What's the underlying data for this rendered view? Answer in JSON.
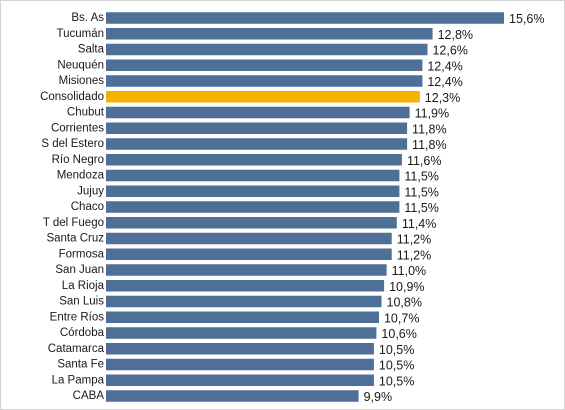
{
  "chart_data": {
    "type": "bar",
    "orientation": "horizontal",
    "categories": [
      "Bs. As",
      "Tucumán",
      "Salta",
      "Neuquén",
      "Misiones",
      "Consolidado",
      "Chubut",
      "Corrientes",
      "S del Estero",
      "Río Negro",
      "Mendoza",
      "Jujuy",
      "Chaco",
      "T del Fuego",
      "Santa Cruz",
      "Formosa",
      "San Juan",
      "La Rioja",
      "San Luis",
      "Entre Ríos",
      "Córdoba",
      "Catamarca",
      "Santa Fe",
      "La Pampa",
      "CABA"
    ],
    "values": [
      15.6,
      12.8,
      12.6,
      12.4,
      12.4,
      12.3,
      11.9,
      11.8,
      11.8,
      11.6,
      11.5,
      11.5,
      11.5,
      11.4,
      11.2,
      11.2,
      11.0,
      10.9,
      10.8,
      10.7,
      10.6,
      10.5,
      10.5,
      10.5,
      9.9
    ],
    "value_labels": [
      "15,6%",
      "12,8%",
      "12,6%",
      "12,4%",
      "12,4%",
      "12,3%",
      "11,9%",
      "11,8%",
      "11,8%",
      "11,6%",
      "11,5%",
      "11,5%",
      "11,5%",
      "11,4%",
      "11,2%",
      "11,2%",
      "11,0%",
      "10,9%",
      "10,8%",
      "10,7%",
      "10,6%",
      "10,5%",
      "10,5%",
      "10,5%",
      "9,9%"
    ],
    "highlight": "Consolidado",
    "title": "",
    "xlabel": "",
    "ylabel": "",
    "xlim": [
      0,
      15.6
    ],
    "grid": false,
    "legend": "none",
    "colors": {
      "bar": "#4e6f96",
      "highlight": "#f5b000",
      "label": "#1a1a1a",
      "frame": "#d4d4d4"
    }
  }
}
